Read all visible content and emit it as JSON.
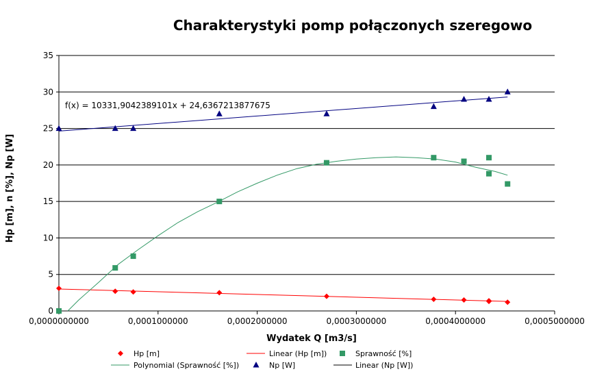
{
  "chart_data": {
    "type": "scatter",
    "title": "Charakterystyki pomp połączonych szeregowo",
    "xlabel": "Wydatek Q [m3/s]",
    "ylabel": "Hp [m], n [%], Np [W]",
    "xlim": [
      0,
      0.0005
    ],
    "ylim": [
      0,
      35
    ],
    "x_ticks": [
      "0,0000000000",
      "0,0001000000",
      "0,0002000000",
      "0,0003000000",
      "0,0004000000",
      "0,0005000000"
    ],
    "y_ticks": [
      "0",
      "5",
      "10",
      "15",
      "20",
      "25",
      "30",
      "35"
    ],
    "grid": "horizontal",
    "legend_position": "bottom",
    "annotation": "f(x) = 10331,9042389101x + 24,6367213877675",
    "series": [
      {
        "name": "Hp [m]",
        "kind": "scatter",
        "marker": "diamond",
        "color": "#ff0000",
        "x": [
          0,
          5.68e-05,
          7.5e-05,
          0.0001618,
          0.00027,
          0.000378,
          0.0004085,
          0.0004337,
          0.0004337,
          0.0004525
        ],
        "y": [
          3.1,
          2.7,
          2.6,
          2.5,
          2.0,
          1.6,
          1.5,
          1.4,
          1.3,
          1.2
        ]
      },
      {
        "name": "Linear (Hp [m])",
        "kind": "line",
        "color": "#ff0000",
        "x": [
          0,
          0.0004525
        ],
        "y": [
          3.0,
          1.3
        ]
      },
      {
        "name": "Sprawność [%]",
        "kind": "scatter",
        "marker": "square",
        "color": "#339966",
        "x": [
          0,
          5.68e-05,
          7.5e-05,
          0.0001618,
          0.00027,
          0.000378,
          0.0004085,
          0.0004337,
          0.0004337,
          0.0004525
        ],
        "y": [
          0,
          5.9,
          7.5,
          15.0,
          20.3,
          21.0,
          20.5,
          21.0,
          18.8,
          17.4
        ]
      },
      {
        "name": "Polynomial (Sprawność [%])",
        "kind": "curve",
        "color": "#339966",
        "x": [
          9e-06,
          2e-05,
          4e-05,
          6e-05,
          8e-05,
          0.0001,
          0.00012,
          0.00014,
          0.00016,
          0.00018,
          0.0002,
          0.00022,
          0.00024,
          0.00026,
          0.00028,
          0.0003,
          0.00032,
          0.00034,
          0.00036,
          0.00038,
          0.0004,
          0.00042,
          0.00044,
          0.0004525
        ],
        "y": [
          0,
          1.5,
          3.9,
          6.4,
          8.4,
          10.3,
          12.1,
          13.6,
          14.9,
          16.3,
          17.5,
          18.6,
          19.5,
          20.1,
          20.5,
          20.8,
          21.0,
          21.1,
          21.0,
          20.8,
          20.4,
          19.7,
          19.1,
          18.6
        ]
      },
      {
        "name": "Np [W]",
        "kind": "scatter",
        "marker": "triangle",
        "color": "#000080",
        "x": [
          0,
          5.68e-05,
          7.5e-05,
          0.0001618,
          0.00027,
          0.000378,
          0.0004085,
          0.0004337,
          0.0004525
        ],
        "y": [
          25,
          25,
          25,
          27,
          27,
          28,
          29,
          29,
          30
        ]
      },
      {
        "name": "Linear (Np [W])",
        "kind": "line",
        "color": "#000080",
        "x": [
          0,
          0.0004525
        ],
        "y": [
          24.64,
          29.31
        ]
      }
    ],
    "legend": [
      {
        "label": "Hp [m]",
        "symbol": "diamond",
        "color": "#ff0000"
      },
      {
        "label": "Linear (Hp [m])",
        "symbol": "line",
        "color": "#ff0000"
      },
      {
        "label": "Sprawność [%]",
        "symbol": "square",
        "color": "#339966"
      },
      {
        "label": "Polynomial (Sprawność [%])",
        "symbol": "line",
        "color": "#339966"
      },
      {
        "label": "Np [W]",
        "symbol": "triangle",
        "color": "#000080"
      },
      {
        "label": "Linear (Np [W])",
        "symbol": "line",
        "color": "#000000"
      }
    ]
  }
}
